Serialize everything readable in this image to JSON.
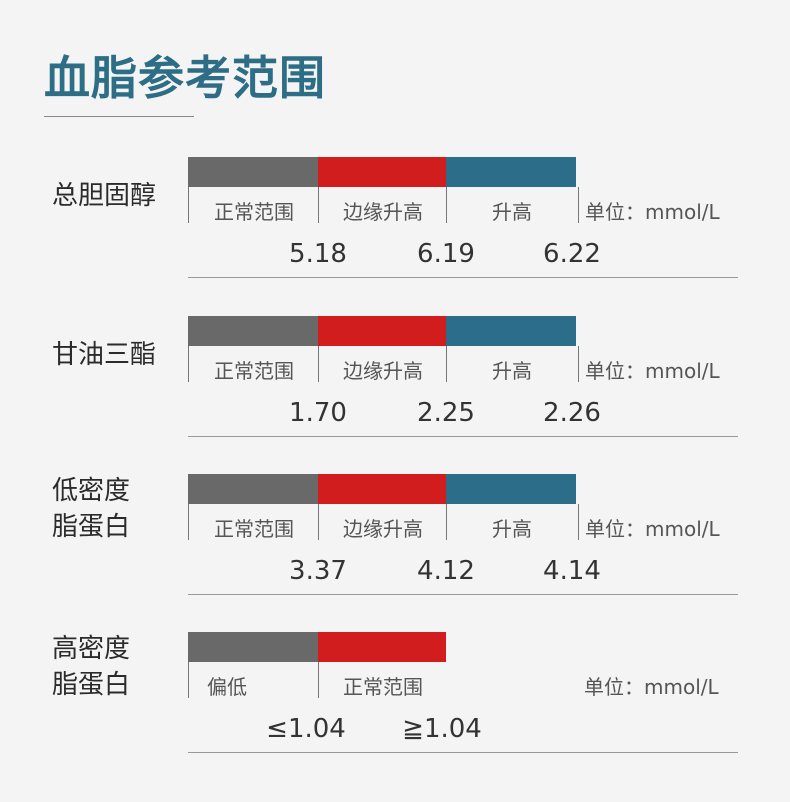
{
  "title": "血脂参考范围",
  "colors": {
    "gray": "#696969",
    "red": "#d11d1d",
    "blue": "#2c6d89",
    "title": "#2d6e86"
  },
  "sections": [
    {
      "label": [
        "总胆固醇"
      ],
      "segments": [
        "正常范围",
        "边缘升高",
        "升高"
      ],
      "unit": "单位：mmol/L",
      "values": [
        "5.18",
        "6.19",
        "6.22"
      ]
    },
    {
      "label": [
        "甘油三酯"
      ],
      "segments": [
        "正常范围",
        "边缘升高",
        "升高"
      ],
      "unit": "单位：mmol/L",
      "values": [
        "1.70",
        "2.25",
        "2.26"
      ]
    },
    {
      "label": [
        "低密度",
        "脂蛋白"
      ],
      "segments": [
        "正常范围",
        "边缘升高",
        "升高"
      ],
      "unit": "单位：mmol/L",
      "values": [
        "3.37",
        "4.12",
        "4.14"
      ]
    },
    {
      "label": [
        "高密度",
        "脂蛋白"
      ],
      "segments": [
        "偏低",
        "正常范围"
      ],
      "unit": "单位：mmol/L",
      "values": [
        "≤1.04",
        "≧1.04"
      ]
    }
  ]
}
